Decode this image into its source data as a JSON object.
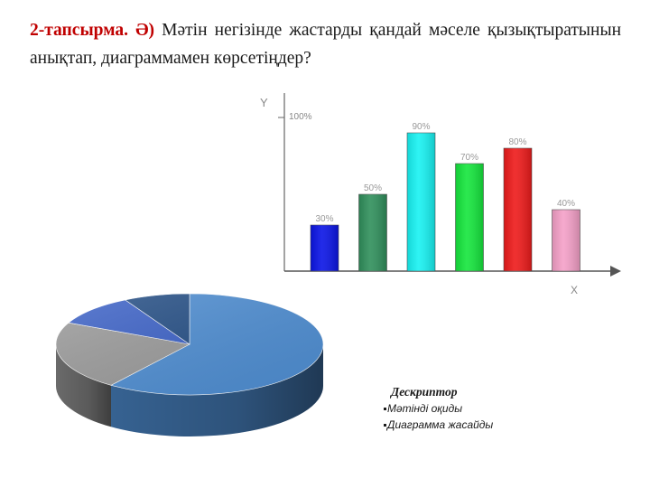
{
  "task": {
    "label": "2-тапсырма. Ә)",
    "text": "Мәтін негізінде жастарды қандай мәселе қызықтыратынын анықтап, диаграммамен көрсетіңдер?"
  },
  "chart_data": [
    {
      "type": "bar",
      "xlabel": "X",
      "ylabel": "Y",
      "y_axis_tick": "100%",
      "ylim": [
        0,
        100
      ],
      "grid": false,
      "categories": [
        "",
        "",
        "",
        "",
        "",
        ""
      ],
      "values": [
        30,
        50,
        90,
        70,
        80,
        40
      ],
      "data_labels": [
        "30%",
        "50%",
        "90%",
        "70%",
        "80%",
        "40%"
      ],
      "colors": [
        "#0a14e6",
        "#2f8f5b",
        "#17f2f2",
        "#14e63c",
        "#ee1a1a",
        "#f5a0c8"
      ]
    },
    {
      "type": "pie",
      "style": "3d",
      "values": [
        60,
        22,
        10,
        8
      ],
      "colors": [
        "#4f8fd4",
        "#9b9b9b",
        "#3c62c8",
        "#254f86"
      ]
    }
  ],
  "descriptor": {
    "title": "Дескриптор",
    "items": [
      "Мәтінді оқиды",
      "Диаграмма жасайды"
    ]
  }
}
